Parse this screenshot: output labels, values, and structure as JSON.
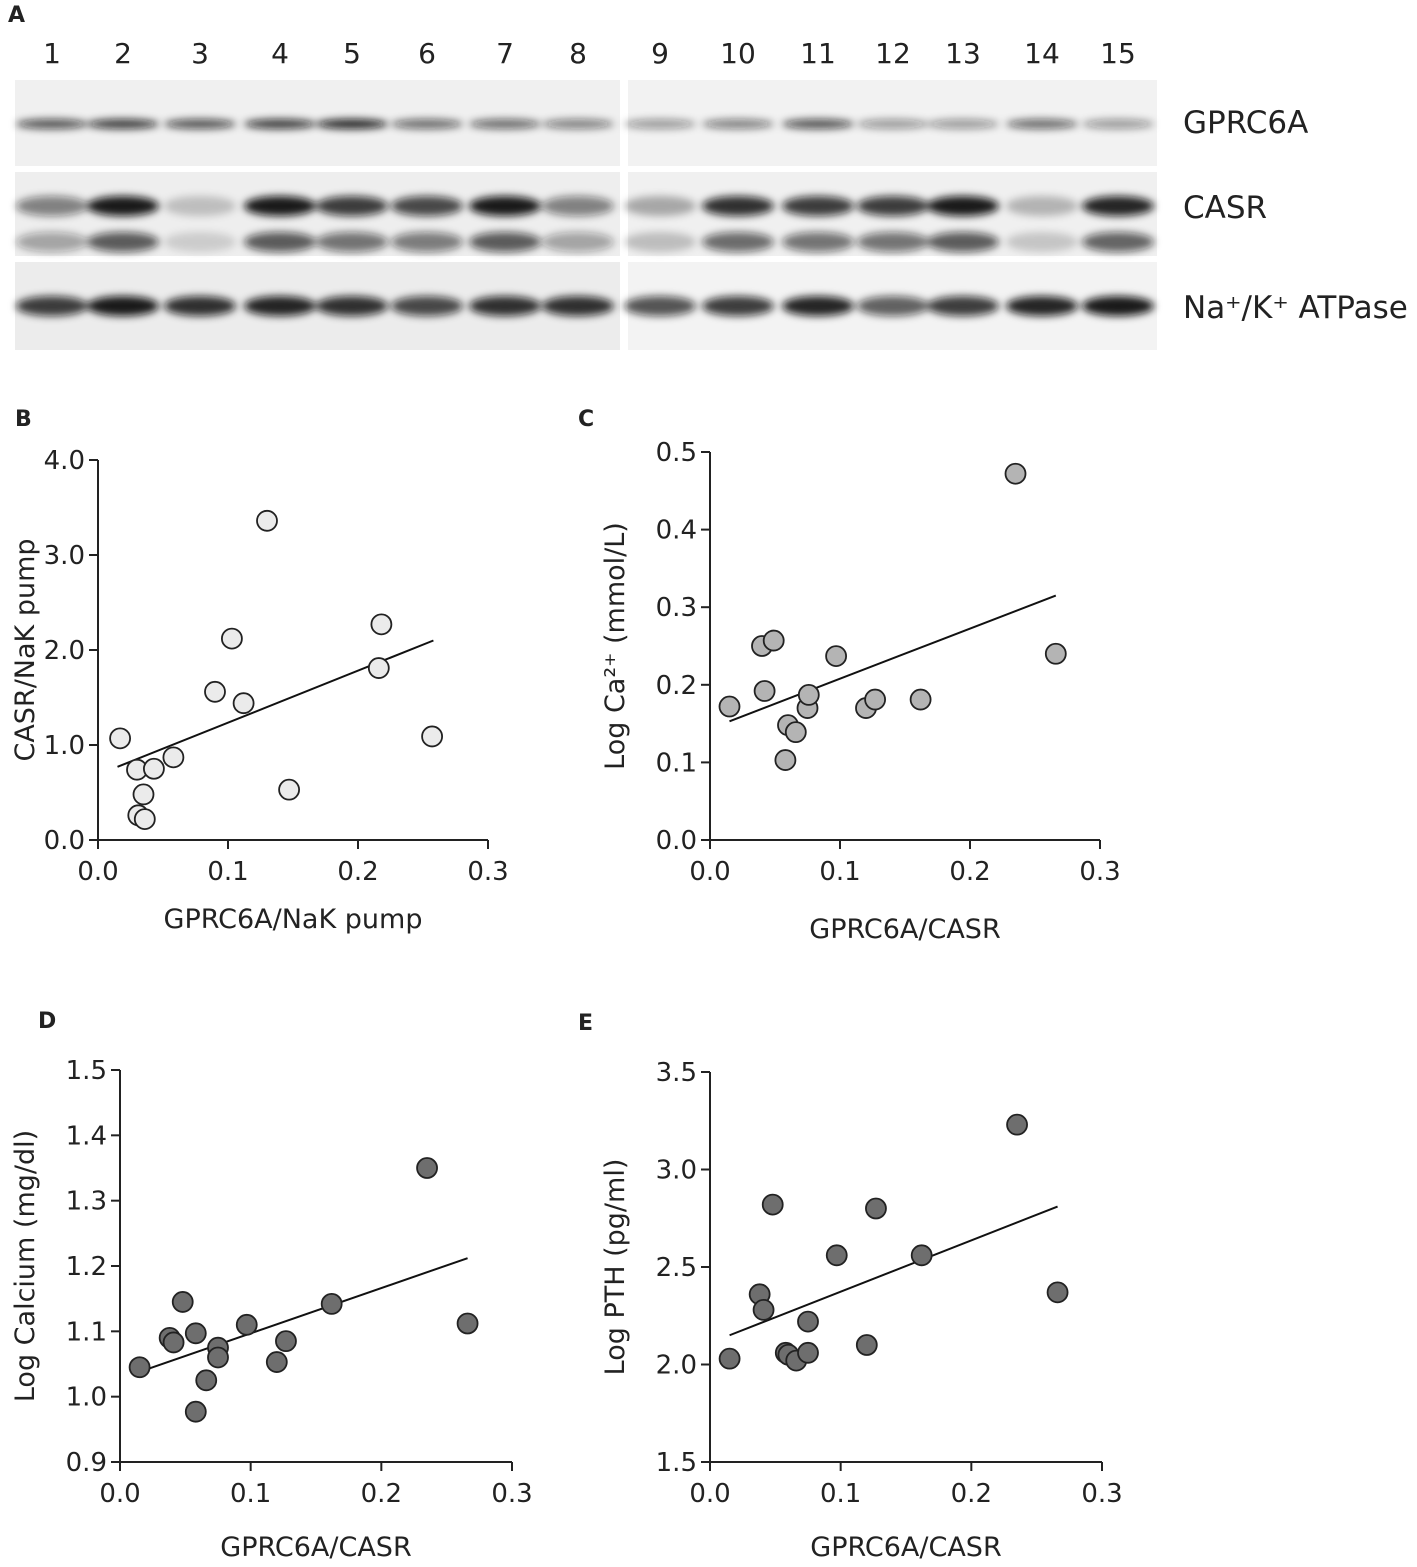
{
  "blot": {
    "panel_label": "A",
    "lanes": [
      "1",
      "2",
      "3",
      "4",
      "5",
      "6",
      "7",
      "8",
      "9",
      "10",
      "11",
      "12",
      "13",
      "14",
      "15"
    ],
    "rows": [
      "GPRC6A",
      "CASR",
      "Na⁺/K⁺ ATPase"
    ]
  },
  "chart_data": [
    {
      "type": "scatter",
      "panel_label": "B",
      "x_label": "GPRC6A/NaK pump",
      "y_label": "CASR/NaK pump",
      "color": "#ebebeb",
      "x": [
        0.017,
        0.03,
        0.043,
        0.035,
        0.031,
        0.036,
        0.058,
        0.09,
        0.103,
        0.112,
        0.13,
        0.147,
        0.218,
        0.216,
        0.257
      ],
      "y": [
        1.07,
        0.74,
        0.75,
        0.48,
        0.26,
        0.22,
        0.87,
        1.56,
        2.12,
        1.44,
        3.36,
        0.53,
        2.27,
        1.81,
        1.09
      ],
      "trendline": {
        "x": [
          0.015,
          0.258
        ],
        "y": [
          0.77,
          2.1
        ]
      },
      "xlim": [
        0,
        0.3
      ],
      "xticks": [
        {
          "value": 0,
          "label": "0.0"
        },
        0.1,
        0.2,
        0.3
      ],
      "ylim": [
        0,
        4
      ],
      "yticks": [
        {
          "value": 0,
          "label": "0.0"
        },
        {
          "value": 1,
          "label": "1.0"
        },
        {
          "value": 2,
          "label": "2.0"
        },
        {
          "value": 3,
          "label": "3.0"
        },
        {
          "value": 4,
          "label": "4.0"
        }
      ]
    },
    {
      "type": "scatter",
      "panel_label": "C",
      "x_label": "GPRC6A/CASR",
      "y_label": "Log Ca²⁺ (mmol/L)",
      "color": "#b4b4b4",
      "x": [
        0.015,
        0.04,
        0.049,
        0.042,
        0.06,
        0.058,
        0.066,
        0.075,
        0.076,
        0.097,
        0.12,
        0.127,
        0.162,
        0.235,
        0.266
      ],
      "y": [
        0.172,
        0.25,
        0.257,
        0.192,
        0.148,
        0.103,
        0.139,
        0.17,
        0.187,
        0.237,
        0.17,
        0.181,
        0.181,
        0.472,
        0.24
      ],
      "trendline": {
        "x": [
          0.015,
          0.266
        ],
        "y": [
          0.153,
          0.315
        ]
      },
      "xlim": [
        0,
        0.3
      ],
      "xticks": [
        {
          "value": 0,
          "label": "0.0"
        },
        0.1,
        0.2,
        0.3
      ],
      "ylim": [
        0,
        0.5
      ],
      "yticks": [
        {
          "value": 0,
          "label": "0.0"
        },
        0.1,
        0.2,
        0.3,
        0.4,
        0.5
      ]
    },
    {
      "type": "scatter",
      "panel_label": "D",
      "x_label": "GPRC6A/CASR",
      "y_label": "Log Calcium (mg/dl)",
      "color": "#6e6e6e",
      "x": [
        0.015,
        0.038,
        0.041,
        0.048,
        0.058,
        0.058,
        0.066,
        0.075,
        0.075,
        0.097,
        0.12,
        0.127,
        0.162,
        0.235,
        0.266
      ],
      "y": [
        1.045,
        1.09,
        1.083,
        1.145,
        1.097,
        0.977,
        1.025,
        1.075,
        1.06,
        1.11,
        1.053,
        1.085,
        1.142,
        1.35,
        1.112
      ],
      "trendline": {
        "x": [
          0.015,
          0.266
        ],
        "y": [
          1.038,
          1.212
        ]
      },
      "xlim": [
        0,
        0.3
      ],
      "xticks": [
        {
          "value": 0,
          "label": "0.0"
        },
        0.1,
        0.2,
        0.3
      ],
      "ylim": [
        0.9,
        1.5
      ],
      "yticks": [
        0.9,
        {
          "value": 1,
          "label": "1.0"
        },
        1.1,
        1.2,
        1.3,
        1.4,
        1.5
      ]
    },
    {
      "type": "scatter",
      "panel_label": "E",
      "x_label": "GPRC6A/CASR",
      "y_label": "Log PTH (pg/ml)",
      "color": "#6e6e6e",
      "x": [
        0.015,
        0.038,
        0.041,
        0.048,
        0.058,
        0.06,
        0.066,
        0.075,
        0.075,
        0.097,
        0.12,
        0.127,
        0.162,
        0.235,
        0.266
      ],
      "y": [
        2.03,
        2.36,
        2.28,
        2.82,
        2.06,
        2.05,
        2.02,
        2.22,
        2.06,
        2.56,
        2.1,
        2.8,
        2.56,
        3.23,
        2.37
      ],
      "trendline": {
        "x": [
          0.015,
          0.266
        ],
        "y": [
          2.15,
          2.81
        ]
      },
      "xlim": [
        0,
        0.3
      ],
      "xticks": [
        {
          "value": 0,
          "label": "0.0"
        },
        0.1,
        0.2,
        0.3
      ],
      "ylim": [
        1.5,
        3.5
      ],
      "yticks": [
        1.5,
        {
          "value": 2,
          "label": "2.0"
        },
        2.5,
        {
          "value": 3,
          "label": "3.0"
        },
        3.5
      ]
    }
  ]
}
